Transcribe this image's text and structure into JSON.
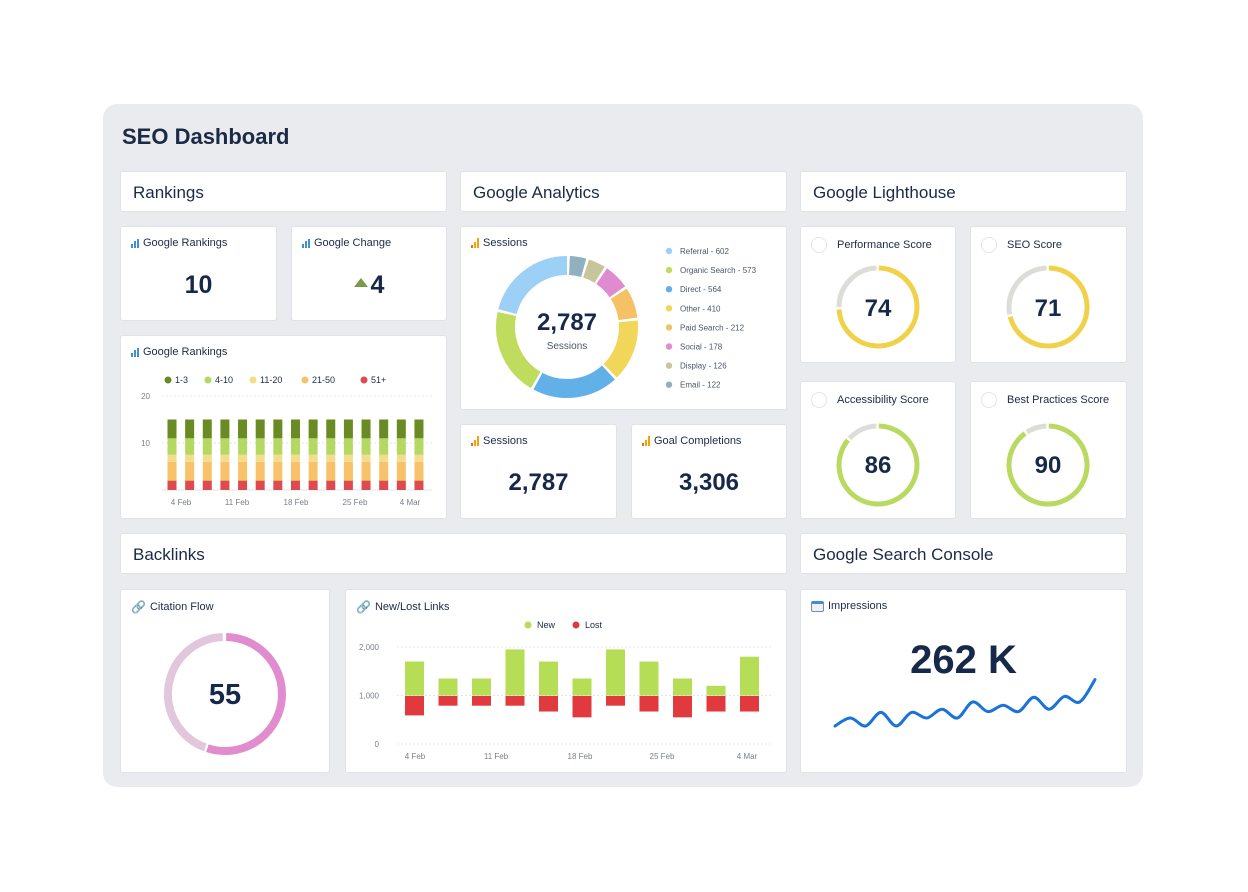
{
  "title": "SEO Dashboard",
  "sections": {
    "rankings": "Rankings",
    "analytics": "Google Analytics",
    "lighthouse": "Google Lighthouse",
    "backlinks": "Backlinks",
    "search_console": "Google Search Console"
  },
  "rankings": {
    "google_rankings": {
      "label": "Google Rankings",
      "value": "10"
    },
    "google_change": {
      "label": "Google Change",
      "value": "4",
      "direction": "up",
      "arrow_color": "#7a9a4a"
    },
    "chart_title": "Google Rankings"
  },
  "analytics": {
    "sessions_donut": {
      "label": "Sessions",
      "total": "2,787",
      "center_label": "Sessions"
    },
    "sessions": {
      "label": "Sessions",
      "value": "2,787"
    },
    "goals": {
      "label": "Goal Completions",
      "value": "3,306"
    }
  },
  "lighthouse": [
    {
      "label": "Performance Score",
      "value": "74",
      "score": 74,
      "color": "#f0d24a"
    },
    {
      "label": "SEO Score",
      "value": "71",
      "score": 71,
      "color": "#f0d24a"
    },
    {
      "label": "Accessibility Score",
      "value": "86",
      "score": 86,
      "color": "#b9d960"
    },
    {
      "label": "Best Practices Score",
      "value": "90",
      "score": 90,
      "color": "#b9d960"
    }
  ],
  "backlinks": {
    "citation_flow": {
      "label": "Citation Flow",
      "value": "55",
      "score": 55,
      "color": "#e08cce",
      "rest_color": "#e2c6dc"
    },
    "links_title": "New/Lost Links"
  },
  "search_console": {
    "impressions": {
      "label": "Impressions",
      "value": "262 K",
      "line_color": "#1a73d9"
    }
  },
  "chart_data": [
    {
      "type": "bar",
      "stacked": true,
      "title": "Google Rankings",
      "categories": [
        "4 Feb",
        "",
        "",
        "",
        "",
        "",
        "",
        "",
        "",
        "",
        "",
        "",
        "",
        "",
        ""
      ],
      "x_tick_labels": [
        "4 Feb",
        "11 Feb",
        "18 Feb",
        "25 Feb",
        "4 Mar"
      ],
      "ylim": [
        0,
        20
      ],
      "y_ticks": [
        "20",
        "10"
      ],
      "grid": true,
      "legend": "top",
      "series": [
        {
          "name": "51+",
          "color": "#dd4b4e",
          "values": [
            2,
            2,
            2,
            2,
            2,
            2,
            2,
            2,
            2,
            2,
            2,
            2,
            2,
            2,
            2
          ]
        },
        {
          "name": "21-50",
          "color": "#f7c26a",
          "values": [
            4,
            4,
            4,
            4,
            4,
            4,
            4,
            4,
            4,
            4,
            4,
            4,
            4,
            4,
            4
          ]
        },
        {
          "name": "11-20",
          "color": "#f3dc8a",
          "values": [
            1.5,
            1.5,
            1.5,
            1.5,
            1.5,
            1.5,
            1.5,
            1.5,
            1.5,
            1.5,
            1.5,
            1.5,
            1.5,
            1.5,
            1.5
          ]
        },
        {
          "name": "4-10",
          "color": "#b5d863",
          "values": [
            3.5,
            3.5,
            3.5,
            3.5,
            3.5,
            3.5,
            3.5,
            3.5,
            3.5,
            3.5,
            3.5,
            3.5,
            3.5,
            3.5,
            3.5
          ]
        },
        {
          "name": "1-3",
          "color": "#6a8a23",
          "values": [
            4,
            4,
            4,
            4,
            4,
            4,
            4,
            4,
            4,
            4,
            4,
            4,
            4,
            4,
            4
          ]
        }
      ],
      "legend_order": [
        "1-3",
        "4-10",
        "11-20",
        "21-50",
        "51+"
      ]
    },
    {
      "type": "pie",
      "donut": true,
      "title": "Sessions",
      "slices": [
        {
          "name": "Referral",
          "label": "Referral - 602",
          "value": 602,
          "color": "#9dd0f7"
        },
        {
          "name": "Organic Search",
          "label": "Organic Search - 573",
          "value": 573,
          "color": "#c0dc5e"
        },
        {
          "name": "Direct",
          "label": "Direct - 564",
          "value": 564,
          "color": "#62b0e8"
        },
        {
          "name": "Other",
          "label": "Other - 410",
          "value": 410,
          "color": "#f0d75a"
        },
        {
          "name": "Paid Search",
          "label": "Paid Search - 212",
          "value": 212,
          "color": "#f4c264"
        },
        {
          "name": "Social",
          "label": "Social - 178",
          "value": 178,
          "color": "#e08ad0"
        },
        {
          "name": "Display",
          "label": "Display - 126",
          "value": 126,
          "color": "#c7c59a"
        },
        {
          "name": "Email",
          "label": "Email - 122",
          "value": 122,
          "color": "#8fb0bf"
        }
      ],
      "legend": "right"
    },
    {
      "type": "bar",
      "title": "New/Lost Links",
      "baseline": 1000,
      "x_tick_labels": [
        "4 Feb",
        "11 Feb",
        "18 Feb",
        "25 Feb",
        "4 Mar"
      ],
      "ylim": [
        0,
        2000
      ],
      "y_ticks": [
        "2,000",
        "1,000",
        "0"
      ],
      "grid": true,
      "legend": "top",
      "series": [
        {
          "name": "New",
          "color": "#b5dd55",
          "values": [
            1700,
            1350,
            1350,
            1950,
            1700,
            1350,
            1950,
            1700,
            1350,
            1200,
            1800
          ]
        },
        {
          "name": "Lost",
          "color": "#e0393e",
          "values": [
            600,
            800,
            800,
            800,
            680,
            560,
            800,
            680,
            560,
            680,
            680
          ]
        }
      ]
    },
    {
      "type": "line",
      "title": "Impressions",
      "values": [
        30,
        40,
        30,
        47,
        30,
        47,
        40,
        51,
        40,
        60,
        48,
        56,
        48,
        66,
        51,
        67,
        60,
        88
      ]
    }
  ]
}
